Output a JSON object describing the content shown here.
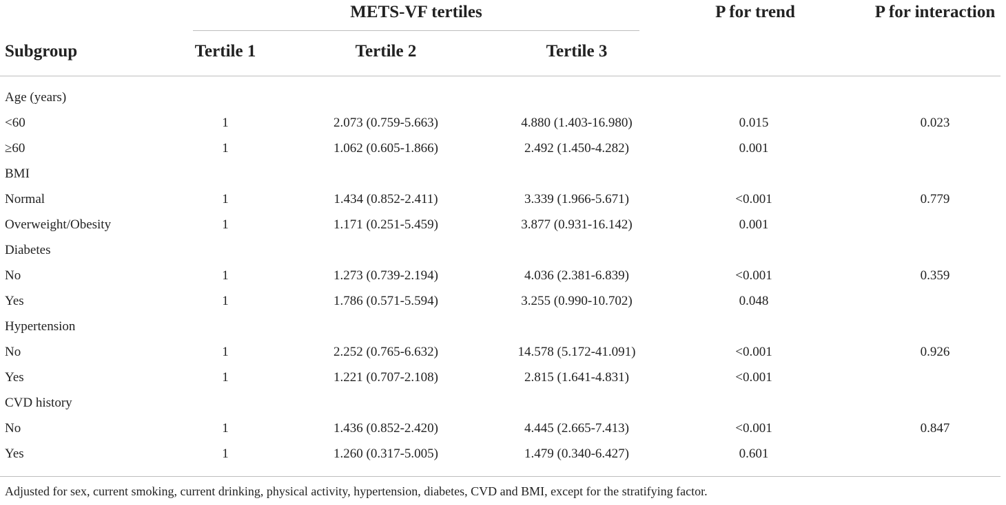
{
  "table": {
    "headers": {
      "group": "METS-VF tertiles",
      "subgroup": "Subgroup",
      "tertile1": "Tertile 1",
      "tertile2": "Tertile 2",
      "tertile3": "Tertile 3",
      "p_trend": "P for trend",
      "p_interaction": "P for interaction"
    },
    "rows": [
      {
        "label": "Age (years)",
        "t1": "",
        "t2": "",
        "t3": "",
        "p_trend": "",
        "p_interaction": ""
      },
      {
        "label": "<60",
        "t1": "1",
        "t2": "2.073 (0.759-5.663)",
        "t3": "4.880 (1.403-16.980)",
        "p_trend": "0.015",
        "p_interaction": "0.023"
      },
      {
        "label": "≥60",
        "t1": "1",
        "t2": "1.062 (0.605-1.866)",
        "t3": "2.492 (1.450-4.282)",
        "p_trend": "0.001",
        "p_interaction": ""
      },
      {
        "label": "BMI",
        "t1": "",
        "t2": "",
        "t3": "",
        "p_trend": "",
        "p_interaction": ""
      },
      {
        "label": "Normal",
        "t1": "1",
        "t2": "1.434 (0.852-2.411)",
        "t3": "3.339 (1.966-5.671)",
        "p_trend": "<0.001",
        "p_interaction": "0.779"
      },
      {
        "label": "Overweight/Obesity",
        "t1": "1",
        "t2": "1.171 (0.251-5.459)",
        "t3": "3.877 (0.931-16.142)",
        "p_trend": "0.001",
        "p_interaction": ""
      },
      {
        "label": "Diabetes",
        "t1": "",
        "t2": "",
        "t3": "",
        "p_trend": "",
        "p_interaction": ""
      },
      {
        "label": "No",
        "t1": "1",
        "t2": "1.273 (0.739-2.194)",
        "t3": "4.036 (2.381-6.839)",
        "p_trend": "<0.001",
        "p_interaction": "0.359"
      },
      {
        "label": "Yes",
        "t1": "1",
        "t2": "1.786 (0.571-5.594)",
        "t3": "3.255 (0.990-10.702)",
        "p_trend": "0.048",
        "p_interaction": ""
      },
      {
        "label": "Hypertension",
        "t1": "",
        "t2": "",
        "t3": "",
        "p_trend": "",
        "p_interaction": ""
      },
      {
        "label": "No",
        "t1": "1",
        "t2": "2.252 (0.765-6.632)",
        "t3": "14.578 (5.172-41.091)",
        "p_trend": "<0.001",
        "p_interaction": "0.926"
      },
      {
        "label": "Yes",
        "t1": "1",
        "t2": "1.221 (0.707-2.108)",
        "t3": "2.815 (1.641-4.831)",
        "p_trend": "<0.001",
        "p_interaction": ""
      },
      {
        "label": "CVD history",
        "t1": "",
        "t2": "",
        "t3": "",
        "p_trend": "",
        "p_interaction": ""
      },
      {
        "label": "No",
        "t1": "1",
        "t2": "1.436 (0.852-2.420)",
        "t3": "4.445 (2.665-7.413)",
        "p_trend": "<0.001",
        "p_interaction": "0.847"
      },
      {
        "label": "Yes",
        "t1": "1",
        "t2": "1.260 (0.317-5.005)",
        "t3": "1.479 (0.340-6.427)",
        "p_trend": "0.601",
        "p_interaction": ""
      }
    ],
    "footnote": "Adjusted for sex, current smoking, current drinking, physical activity, hypertension, diabetes, CVD and BMI, except for the stratifying factor."
  }
}
